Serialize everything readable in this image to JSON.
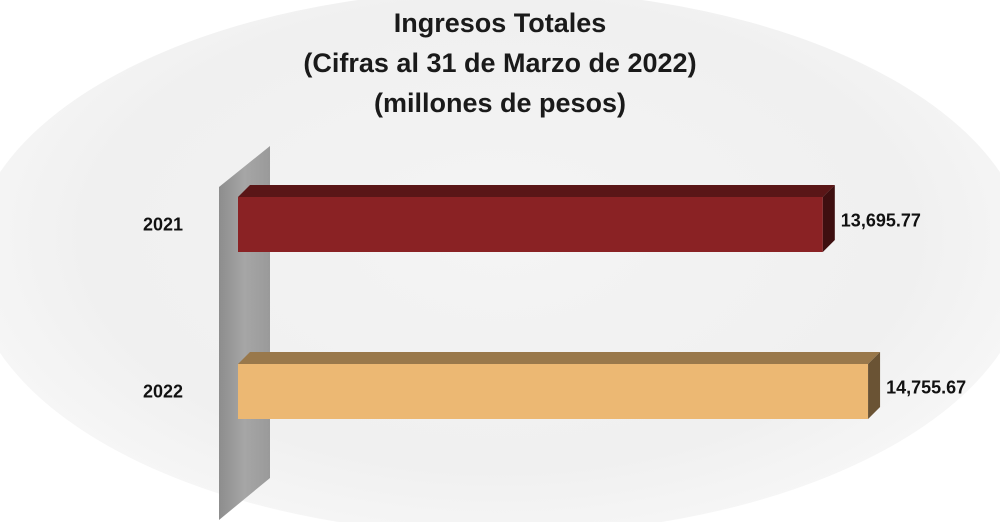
{
  "chart_data": {
    "type": "bar",
    "orientation": "horizontal",
    "style": "3d",
    "title": "Ingresos Totales",
    "subtitle": [
      "(Cifras al 31 de Marzo de 2022)",
      "(millones de pesos)"
    ],
    "xlabel": "",
    "ylabel": "",
    "xlim": [
      0,
      15000
    ],
    "grid": false,
    "legend": "none",
    "categories": [
      "2021",
      "2022"
    ],
    "values": [
      13695.77,
      14755.67
    ],
    "data_labels": [
      "13,695.77",
      "14,755.67"
    ],
    "colors": [
      "#8a2224",
      "#ecb873"
    ]
  }
}
